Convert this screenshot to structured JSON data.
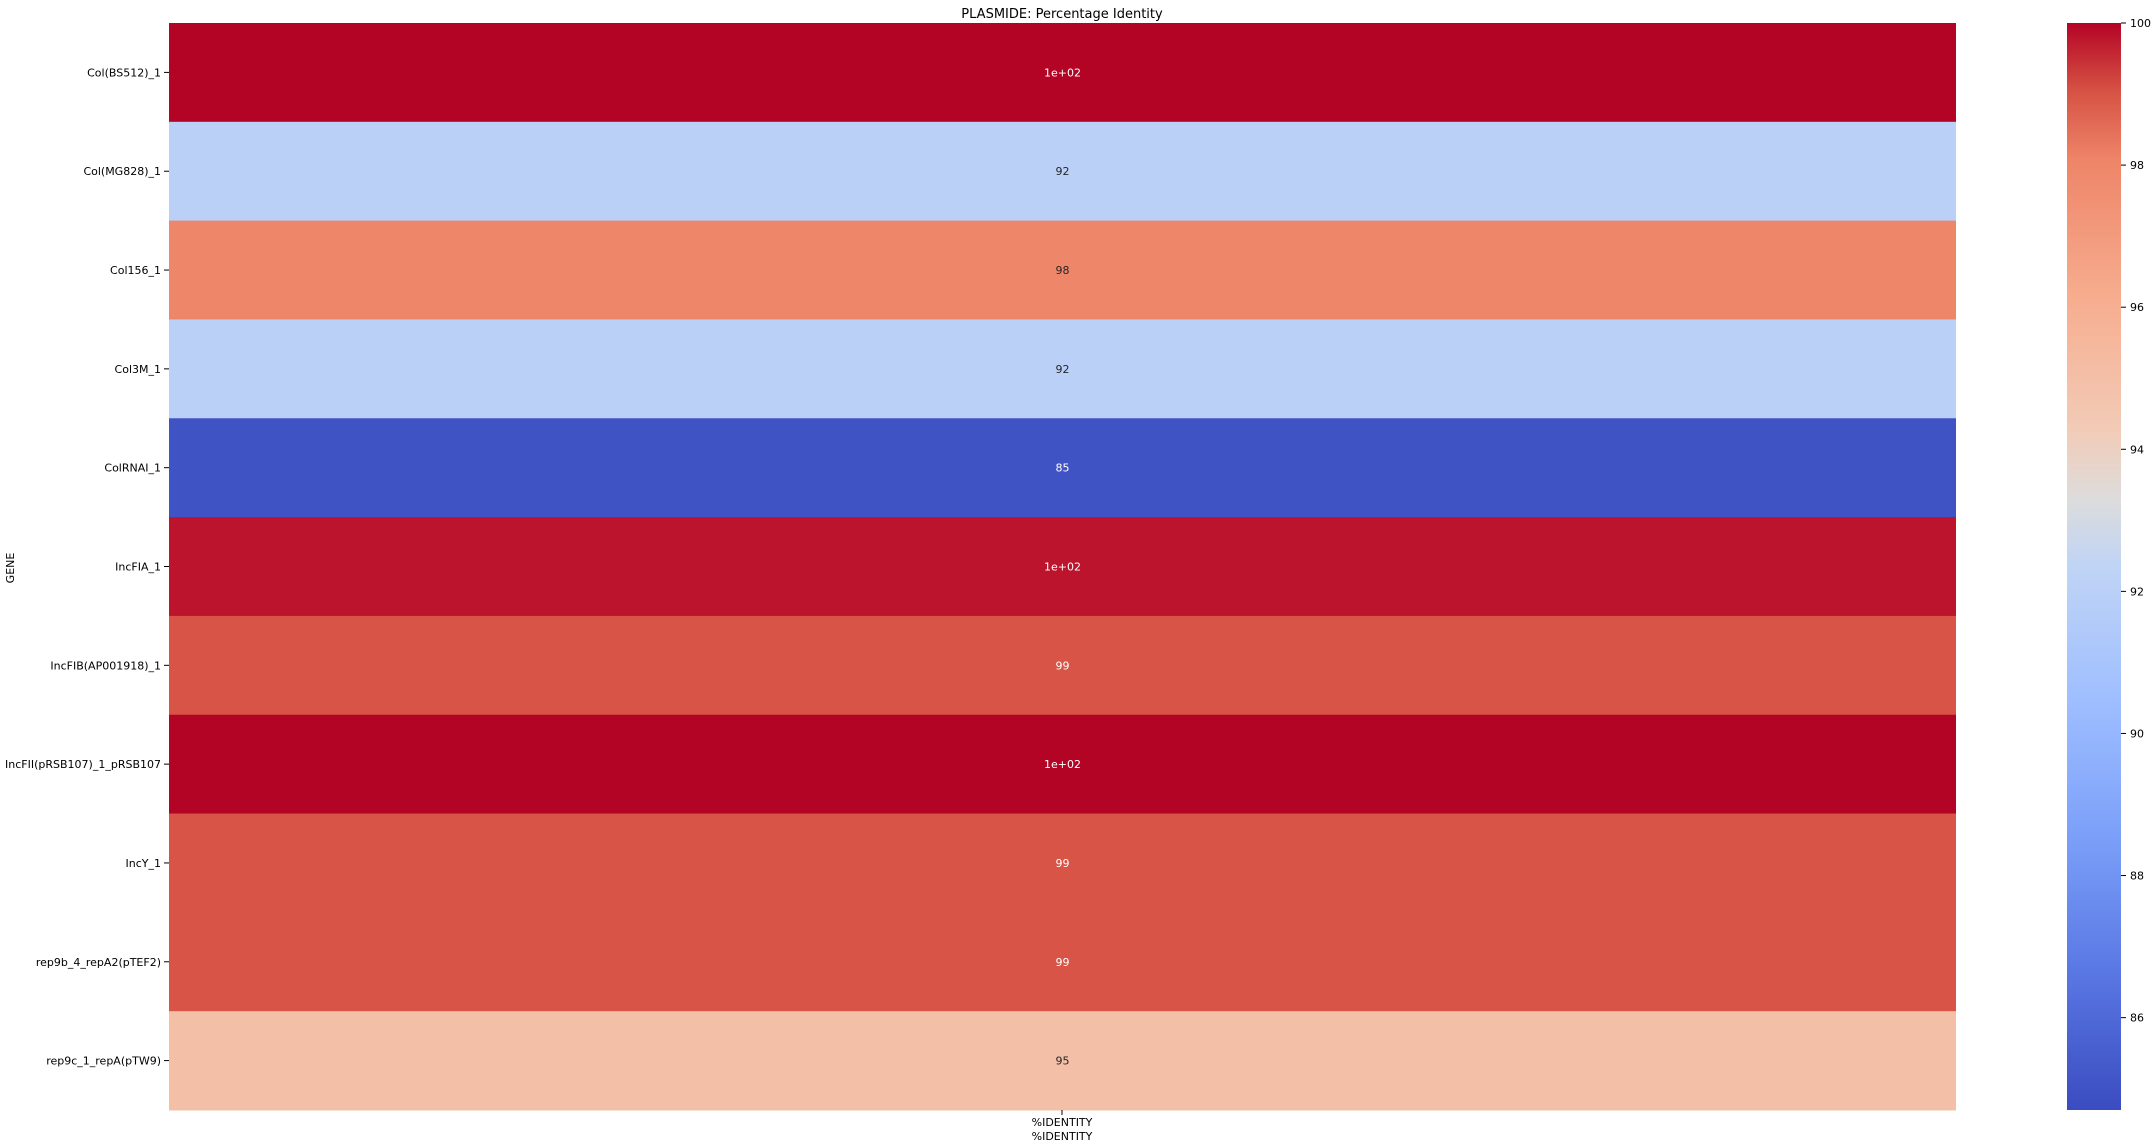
{
  "chart_data": {
    "type": "heatmap",
    "title": "PLASMIDE: Percentage Identity",
    "ylabel": "GENE",
    "xlabel": "%IDENTITY",
    "columns": [
      "%IDENTITY"
    ],
    "rows": [
      "Col(BS512)_1",
      "Col(MG828)_1",
      "Col156_1",
      "Col3M_1",
      "ColRNAI_1",
      "IncFIA_1",
      "IncFIB(AP001918)_1",
      "IncFII(pRSB107)_1_pRSB107",
      "IncY_1",
      "rep9b_4_repA2(pTEF2)",
      "rep9c_1_repA(pTW9)"
    ],
    "values": [
      100,
      92,
      98,
      92,
      85,
      99.8,
      99,
      100,
      99,
      99,
      95
    ],
    "annotations": [
      "1e+02",
      "92",
      "98",
      "92",
      "85",
      "1e+02",
      "99",
      "1e+02",
      "99",
      "99",
      "95"
    ],
    "colormap": "coolwarm",
    "vmin": 84.7,
    "vmax": 100,
    "colorbar_ticks": [
      "100",
      "98",
      "96",
      "94",
      "92",
      "90",
      "88",
      "86"
    ],
    "colorbar_tick_values": [
      100,
      98,
      96,
      94,
      92,
      90,
      88,
      86
    ]
  }
}
